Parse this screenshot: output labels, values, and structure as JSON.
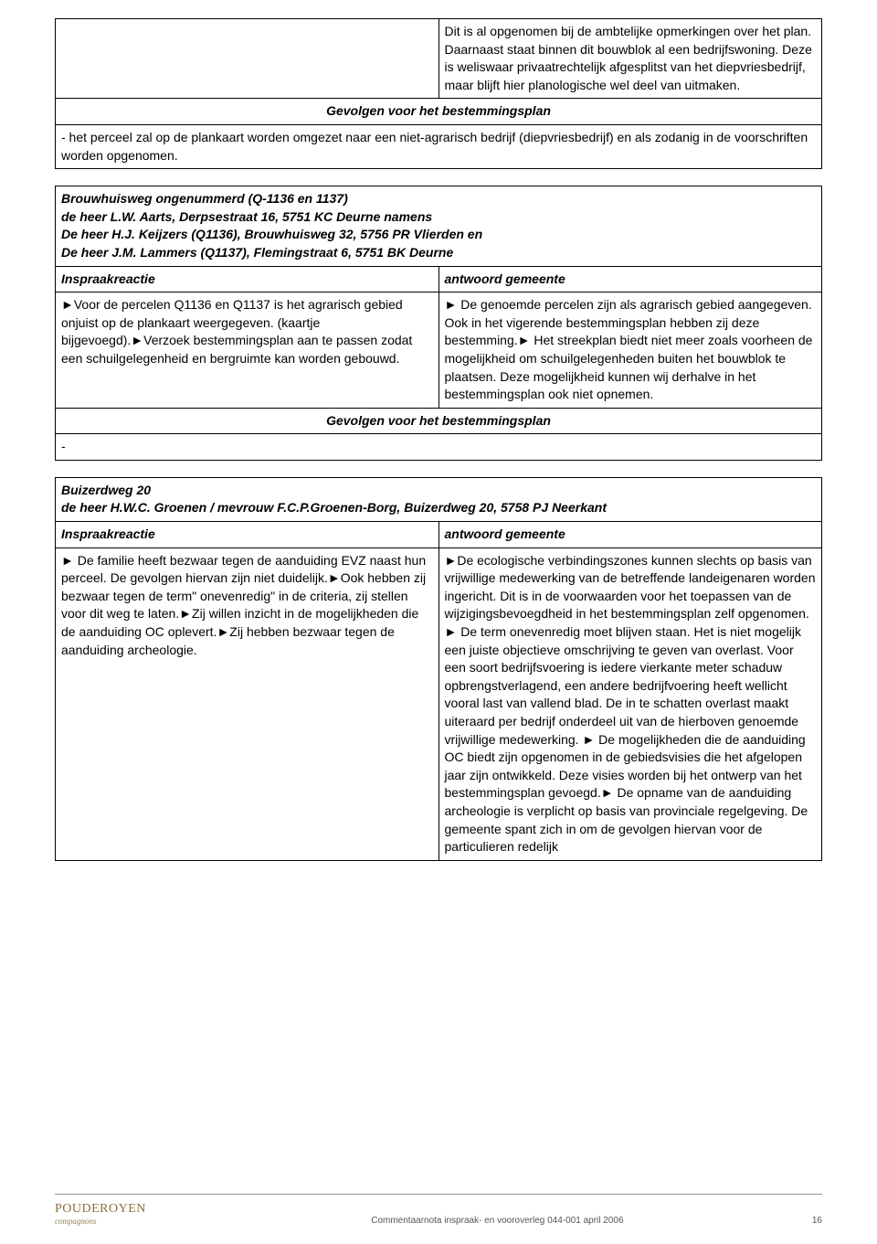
{
  "colors": {
    "text": "#000000",
    "border": "#000000",
    "background": "#ffffff",
    "footer_rule": "#999999",
    "footer_text": "#666666",
    "logo_color": "#8a6f3a"
  },
  "fonts": {
    "body_family": "Arial",
    "body_size_pt": 10,
    "footer_size_pt": 7
  },
  "section1": {
    "right_cell_text": "Dit is al opgenomen bij de ambtelijke opmerkingen over het plan. Daarnaast staat binnen dit bouwblok al een bedrijfswoning. Deze is weliswaar privaatrechtelijk afgesplitst van het diepvriesbedrijf, maar blijft hier planologische wel deel van uitmaken.",
    "gevolgen_label": "Gevolgen voor het bestemmingsplan",
    "gevolgen_text": "- het perceel zal op de plankaart worden omgezet naar een niet-agrarisch bedrijf (diepvriesbedrijf) en als zodanig in de voorschriften worden opgenomen."
  },
  "section2": {
    "header_line1": "Brouwhuisweg ongenummerd (Q-1136 en 1137)",
    "header_line2": "de heer L.W. Aarts, Derpsestraat 16, 5751 KC Deurne namens",
    "header_line3": "De heer H.J. Keijzers (Q1136), Brouwhuisweg 32, 5756 PR Vlierden en",
    "header_line4": "De heer J.M. Lammers (Q1137), Flemingstraat 6, 5751 BK Deurne",
    "left_label": "Inspraakreactie",
    "right_label": "antwoord gemeente",
    "left_text": "►Voor de percelen Q1136 en Q1137 is het agrarisch gebied onjuist op de plankaart weergegeven. (kaartje bijgevoegd).►Verzoek bestemmingsplan aan te passen zodat een schuilgelegenheid en bergruimte kan worden gebouwd.",
    "right_text": "► De genoemde percelen zijn als agrarisch gebied aangegeven. Ook in het vigerende bestemmingsplan hebben zij deze bestemming.► Het streekplan biedt niet meer zoals voorheen de mogelijkheid om schuilgelegenheden buiten het bouwblok te plaatsen. Deze mogelijkheid kunnen wij derhalve in het bestemmingsplan ook niet opnemen.",
    "gevolgen_label": "Gevolgen voor het bestemmingsplan",
    "gevolgen_text": "-"
  },
  "section3": {
    "header_line1": "Buizerdweg 20",
    "header_line2": "de heer H.W.C. Groenen / mevrouw F.C.P.Groenen-Borg, Buizerdweg 20, 5758 PJ Neerkant",
    "left_label": "Inspraakreactie",
    "right_label": "antwoord gemeente",
    "left_text": "► De familie heeft bezwaar tegen de aanduiding EVZ naast hun perceel. De gevolgen hiervan zijn niet duidelijk.►Ook hebben zij bezwaar tegen de term\" onevenredig\" in de criteria, zij stellen voor dit weg te laten.►Zij willen inzicht in de mogelijkheden die de aanduiding OC oplevert.►Zij hebben bezwaar tegen de aanduiding archeologie.",
    "right_text": "►De ecologische verbindingszones kunnen slechts op basis van vrijwillige medewerking van de betreffende landeigenaren worden ingericht. Dit is in de voorwaarden voor het toepassen van de wijzigingsbevoegdheid in het bestemmingsplan zelf opgenomen. ► De term onevenredig moet blijven staan. Het is niet mogelijk een juiste objectieve omschrijving te geven van overlast. Voor een soort bedrijfsvoering is iedere vierkante meter schaduw opbrengstverlagend, een andere bedrijfvoering heeft wellicht vooral last van vallend blad.  De in te schatten overlast maakt uiteraard per bedrijf onderdeel uit van de hierboven genoemde vrijwillige medewerking. ► De mogelijkheden die de aanduiding OC biedt zijn opgenomen in de gebiedsvisies die het afgelopen jaar zijn ontwikkeld. Deze visies worden bij het ontwerp van het bestemmingsplan gevoegd.► De opname van de aanduiding archeologie is verplicht op basis van provinciale regelgeving. De gemeente spant zich in om de gevolgen hiervan voor de particulieren redelijk"
  },
  "footer": {
    "logo_brand": "POUDEROYEN",
    "logo_sub": "compagnons",
    "center_text": "Commentaarnota inspraak- en vooroverleg  044-001  april 2006",
    "page_number": "16"
  }
}
